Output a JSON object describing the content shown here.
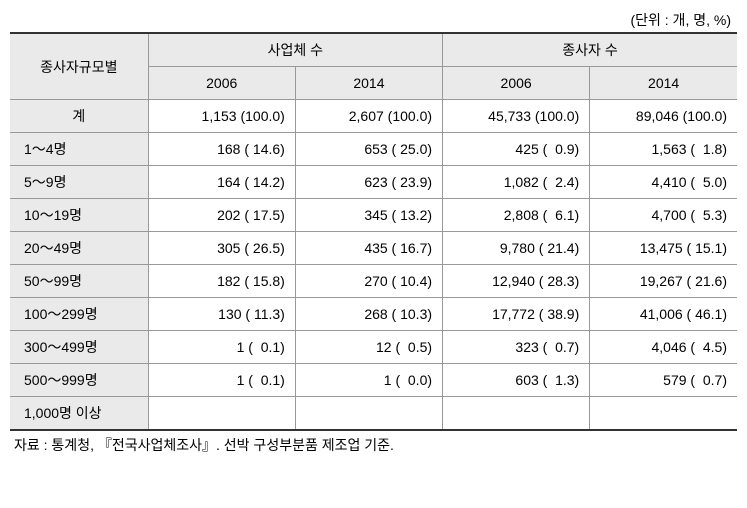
{
  "unit_label": "(단위 : 개, 명, %)",
  "table": {
    "row_header_label": "종사자규모별",
    "group_headers": [
      "사업체 수",
      "종사자 수"
    ],
    "year_headers": [
      "2006",
      "2014",
      "2006",
      "2014"
    ],
    "total_label": "계",
    "total_values": [
      "1,153 (100.0)",
      "2,607 (100.0)",
      "45,733 (100.0)",
      "89,046 (100.0)"
    ],
    "rows": [
      {
        "label": "1～4명",
        "values": [
          "168 ( 14.6)",
          "653 ( 25.0)",
          "425 (  0.9)",
          "1,563 (  1.8)"
        ]
      },
      {
        "label": "5～9명",
        "values": [
          "164 ( 14.2)",
          "623 ( 23.9)",
          "1,082 (  2.4)",
          "4,410 (  5.0)"
        ]
      },
      {
        "label": "10～19명",
        "values": [
          "202 ( 17.5)",
          "345 ( 13.2)",
          "2,808 (  6.1)",
          "4,700 (  5.3)"
        ]
      },
      {
        "label": "20～49명",
        "values": [
          "305 ( 26.5)",
          "435 ( 16.7)",
          "9,780 ( 21.4)",
          "13,475 ( 15.1)"
        ]
      },
      {
        "label": "50～99명",
        "values": [
          "182 ( 15.8)",
          "270 ( 10.4)",
          "12,940 ( 28.3)",
          "19,267 ( 21.6)"
        ]
      },
      {
        "label": "100～299명",
        "values": [
          "130 ( 11.3)",
          "268 ( 10.3)",
          "17,772 ( 38.9)",
          "41,006 ( 46.1)"
        ]
      },
      {
        "label": "300～499명",
        "values": [
          "1 (  0.1)",
          "12 (  0.5)",
          "323 (  0.7)",
          "4,046 (  4.5)"
        ]
      },
      {
        "label": "500～999명",
        "values": [
          "1 (  0.1)",
          "1 (  0.0)",
          "603 (  1.3)",
          "579 (  0.7)"
        ]
      },
      {
        "label": "1,000명 이상",
        "values": [
          "",
          "",
          "",
          ""
        ]
      }
    ]
  },
  "source_note": "자료 : 통계청, 『전국사업체조사』. 선박 구성부분품 제조업 기준.",
  "styling": {
    "background_color": "#ffffff",
    "header_bg_color": "#eaeaea",
    "border_color": "#999999",
    "heavy_border_color": "#333333",
    "text_color": "#000000",
    "font_size_pt": 11,
    "column_widths_pct": [
      19,
      20.25,
      20.25,
      20.25,
      20.25
    ]
  }
}
